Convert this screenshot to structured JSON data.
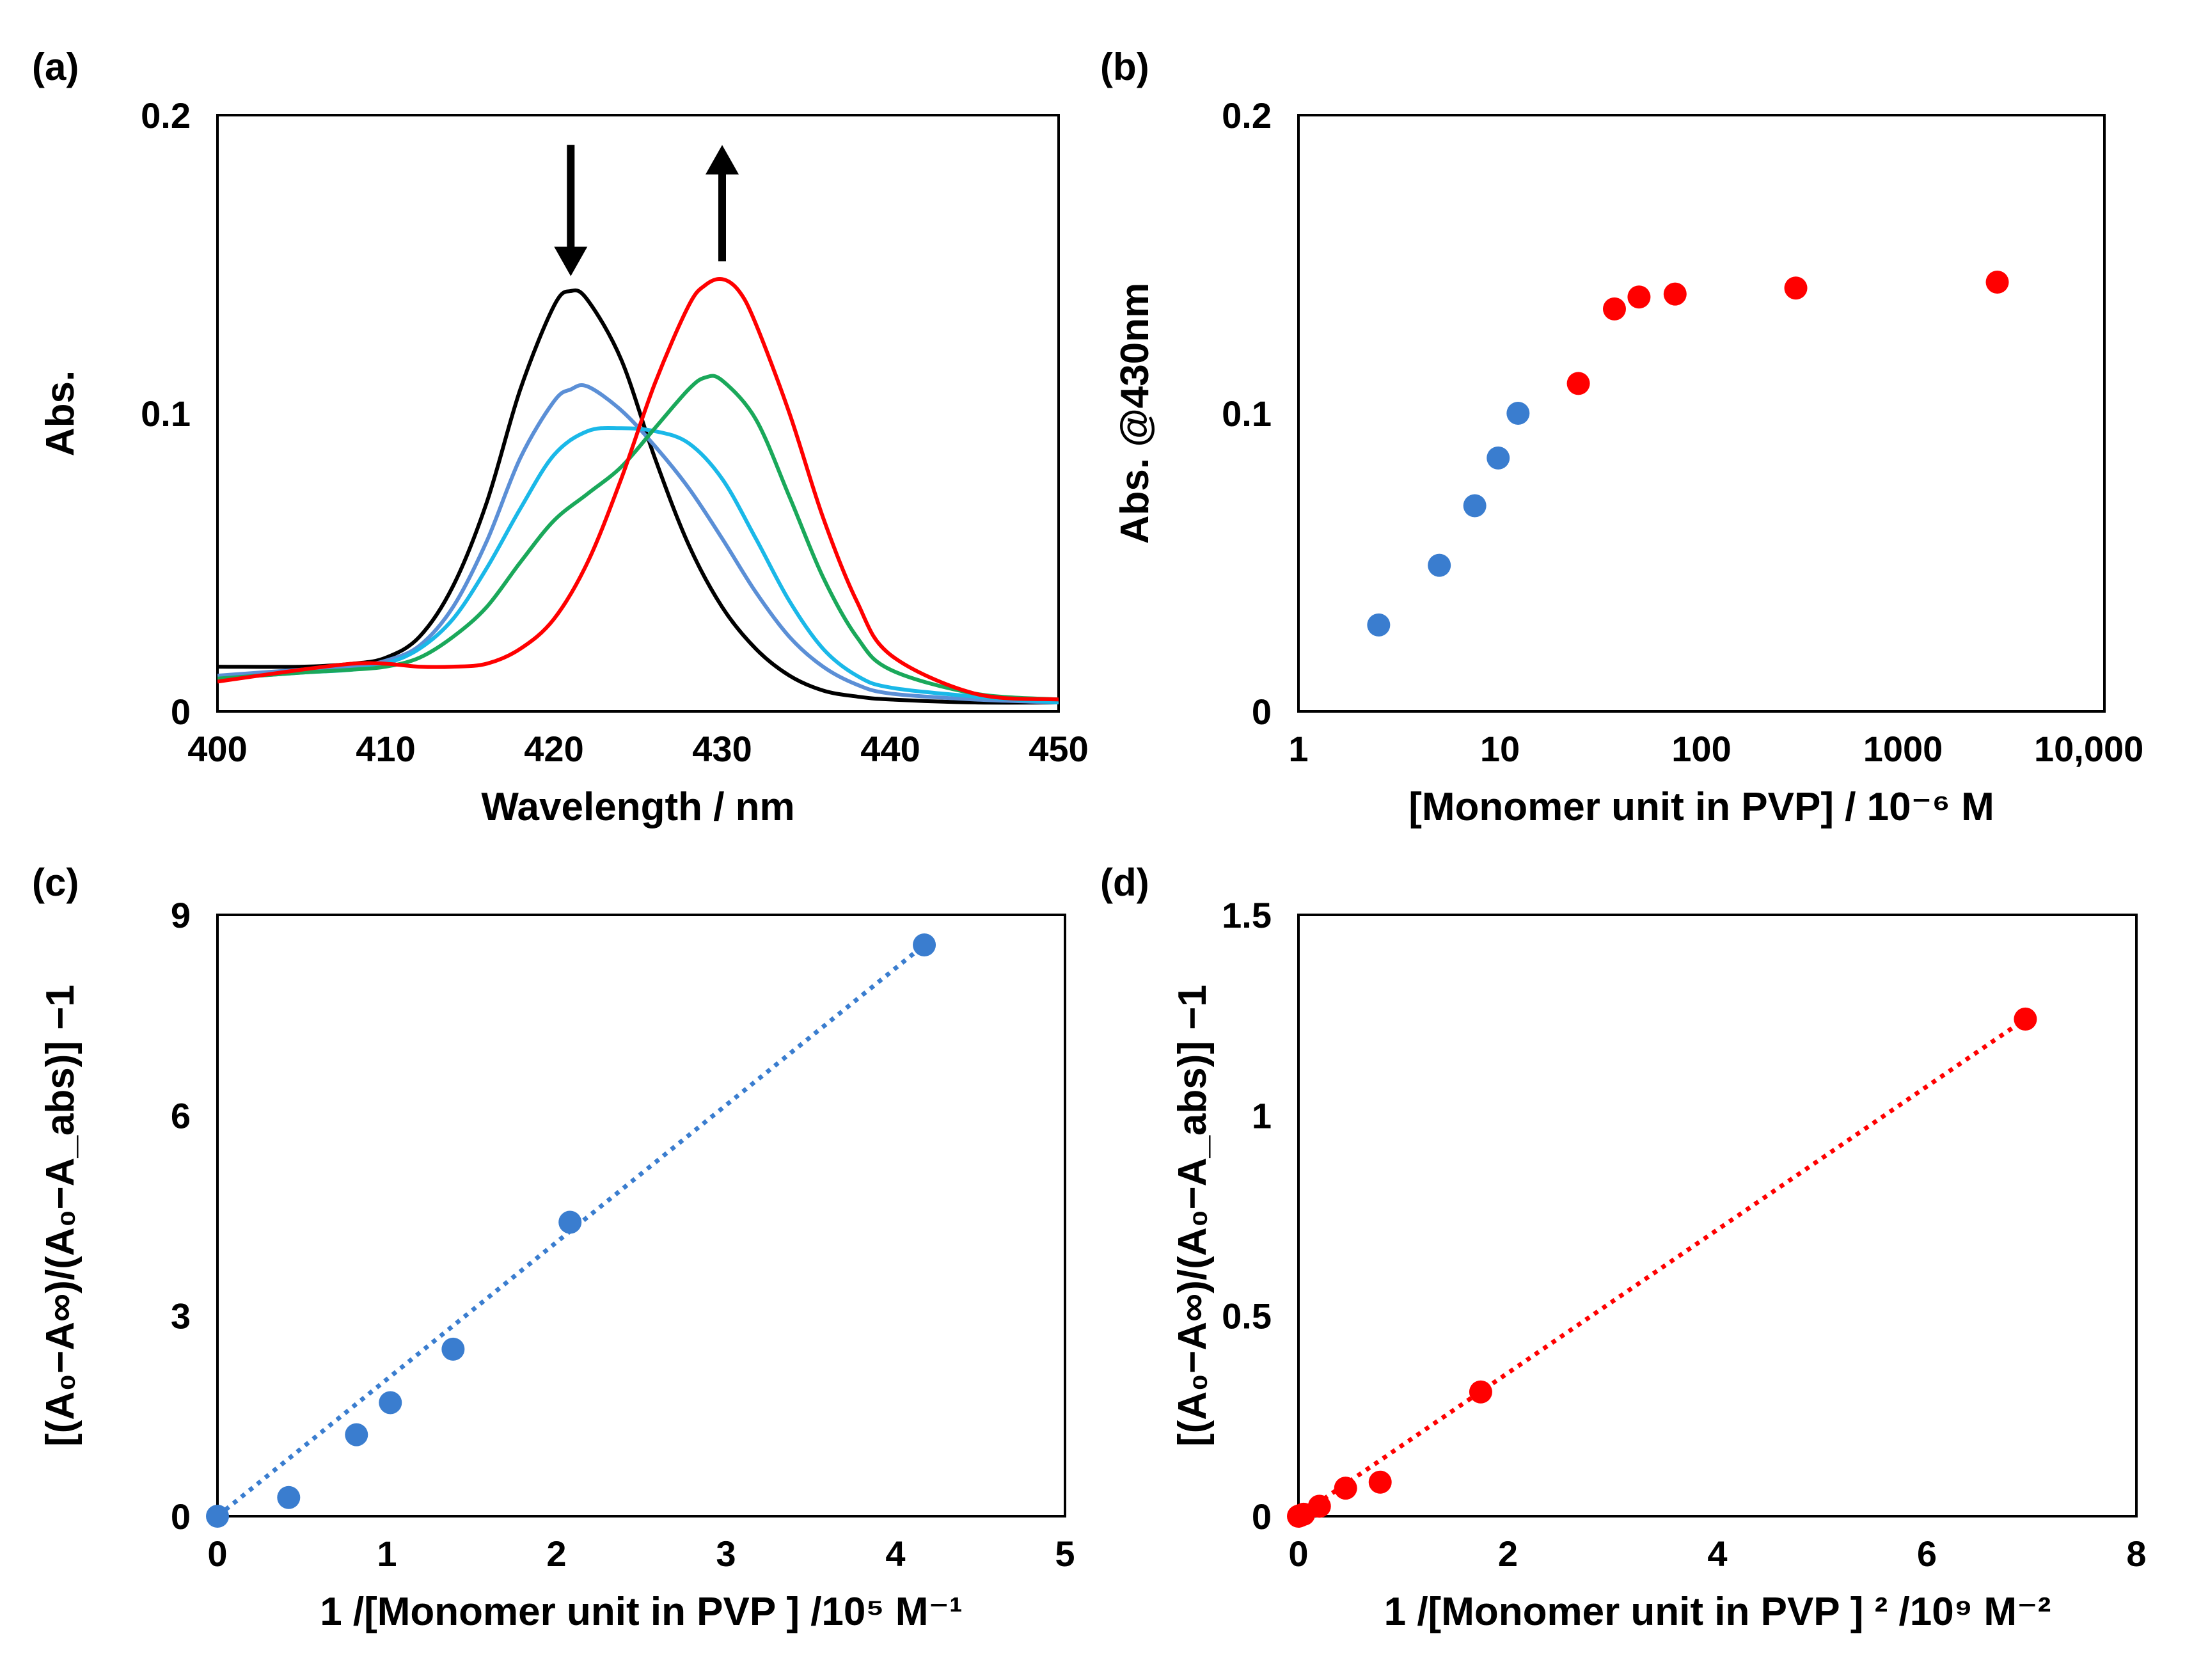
{
  "colors": {
    "black": "#000000",
    "blue_light": "#5b8fd6",
    "cyan": "#1ab8e8",
    "green": "#1aa85a",
    "red": "#ff0000",
    "blue_marker": "#3a7dcf",
    "red_marker": "#ff0000"
  },
  "chart_data": [
    {
      "id": "a",
      "type": "line",
      "panel_label": "(a)",
      "xlabel": "Wavelength / nm",
      "ylabel": "Abs.",
      "xlim": [
        400,
        450
      ],
      "ylim": [
        0,
        0.2
      ],
      "xticks": [
        "400",
        "410",
        "420",
        "430",
        "440",
        "450"
      ],
      "yticks": [
        "0",
        "0.1",
        "0.2"
      ],
      "arrows": [
        {
          "direction": "down",
          "x": 421,
          "y_from": 0.19,
          "y_to": 0.146
        },
        {
          "direction": "up",
          "x": 430,
          "y_from": 0.151,
          "y_to": 0.19
        }
      ],
      "series": [
        {
          "name": "black",
          "color": "#000000",
          "x": [
            400,
            405,
            408,
            410,
            412,
            414,
            416,
            418,
            420,
            421,
            422,
            424,
            426,
            428,
            430,
            432,
            434,
            436,
            438,
            440,
            445,
            450
          ],
          "y": [
            0.015,
            0.015,
            0.016,
            0.018,
            0.025,
            0.042,
            0.07,
            0.108,
            0.136,
            0.141,
            0.138,
            0.118,
            0.085,
            0.056,
            0.035,
            0.021,
            0.012,
            0.007,
            0.005,
            0.004,
            0.003,
            0.003
          ]
        },
        {
          "name": "blue",
          "color": "#5b8fd6",
          "x": [
            400,
            405,
            408,
            410,
            412,
            414,
            416,
            418,
            420,
            421,
            422,
            424,
            426,
            428,
            430,
            432,
            434,
            436,
            438,
            440,
            445,
            450
          ],
          "y": [
            0.012,
            0.014,
            0.015,
            0.017,
            0.022,
            0.035,
            0.057,
            0.085,
            0.104,
            0.108,
            0.109,
            0.101,
            0.089,
            0.075,
            0.058,
            0.04,
            0.025,
            0.015,
            0.009,
            0.006,
            0.004,
            0.003
          ]
        },
        {
          "name": "cyan",
          "color": "#1ab8e8",
          "x": [
            400,
            405,
            408,
            410,
            412,
            414,
            416,
            418,
            420,
            422,
            424,
            426,
            428,
            430,
            432,
            434,
            436,
            438,
            440,
            445,
            450
          ],
          "y": [
            0.011,
            0.013,
            0.014,
            0.016,
            0.021,
            0.031,
            0.048,
            0.068,
            0.086,
            0.094,
            0.095,
            0.094,
            0.09,
            0.078,
            0.058,
            0.037,
            0.021,
            0.012,
            0.008,
            0.005,
            0.003
          ]
        },
        {
          "name": "green",
          "color": "#1aa85a",
          "x": [
            400,
            405,
            408,
            410,
            412,
            414,
            416,
            418,
            420,
            422,
            424,
            426,
            428,
            429,
            430,
            432,
            434,
            436,
            438,
            440,
            445,
            450
          ],
          "y": [
            0.011,
            0.013,
            0.014,
            0.015,
            0.018,
            0.025,
            0.035,
            0.05,
            0.064,
            0.073,
            0.082,
            0.095,
            0.108,
            0.112,
            0.111,
            0.098,
            0.072,
            0.045,
            0.025,
            0.014,
            0.006,
            0.004
          ]
        },
        {
          "name": "red",
          "color": "#ff0000",
          "x": [
            400,
            405,
            408,
            410,
            412,
            414,
            416,
            418,
            420,
            422,
            424,
            426,
            428,
            429,
            430,
            431,
            432,
            434,
            436,
            438,
            440,
            445,
            450
          ],
          "y": [
            0.01,
            0.014,
            0.016,
            0.016,
            0.015,
            0.015,
            0.016,
            0.021,
            0.031,
            0.05,
            0.078,
            0.11,
            0.136,
            0.143,
            0.145,
            0.141,
            0.13,
            0.1,
            0.065,
            0.037,
            0.019,
            0.006,
            0.004
          ]
        }
      ]
    },
    {
      "id": "b",
      "type": "scatter",
      "panel_label": "(b)",
      "xscale": "log",
      "xlabel": "[Monomer unit in PVP] / 10⁻⁶ M",
      "ylabel": "Abs. @430nm",
      "xlim": [
        1,
        10000
      ],
      "ylim": [
        0,
        0.2
      ],
      "xticks": [
        "1",
        "10",
        "100",
        "1000",
        "10,000"
      ],
      "yticks": [
        "0",
        "0.1",
        "0.2"
      ],
      "series": [
        {
          "name": "blue",
          "color": "#3a7dcf",
          "x": [
            2.5,
            5,
            7.5,
            9.8,
            12.3
          ],
          "y": [
            0.029,
            0.049,
            0.069,
            0.085,
            0.1
          ]
        },
        {
          "name": "red",
          "color": "#ff0000",
          "x": [
            24.5,
            37,
            49,
            74,
            294,
            2940
          ],
          "y": [
            0.11,
            0.135,
            0.139,
            0.14,
            0.142,
            0.144
          ]
        }
      ]
    },
    {
      "id": "c",
      "type": "scatter",
      "panel_label": "(c)",
      "xlabel": "1 /[Monomer unit in PVP ]  /10⁵ M⁻¹",
      "ylabel": "[(A₀−A∞)/(A₀−A_abs)] −1",
      "xlim": [
        0,
        5
      ],
      "ylim": [
        0,
        9
      ],
      "xticks": [
        "0",
        "1",
        "2",
        "3",
        "4",
        "5"
      ],
      "yticks": [
        "0",
        "3",
        "6",
        "9"
      ],
      "fit_line": {
        "color": "#3a7dcf",
        "x": [
          0,
          4.17
        ],
        "y": [
          0,
          8.55
        ]
      },
      "series": [
        {
          "name": "blue",
          "color": "#3a7dcf",
          "x": [
            0,
            0.42,
            0.82,
            1.02,
            1.39,
            2.08,
            4.17
          ],
          "y": [
            0,
            0.28,
            1.22,
            1.7,
            2.5,
            4.4,
            8.55
          ]
        }
      ]
    },
    {
      "id": "d",
      "type": "scatter",
      "panel_label": "(d)",
      "xlabel": "1 /[Monomer unit in PVP ] ² /10⁹ M⁻²",
      "ylabel": "[(A₀−A∞)/(A₀−A_abs)] −1",
      "xlim": [
        0,
        8
      ],
      "ylim": [
        0,
        1.5
      ],
      "xticks": [
        "0",
        "2",
        "4",
        "6",
        "8"
      ],
      "yticks": [
        "0",
        "0.5",
        "1",
        "1.5"
      ],
      "fit_line": {
        "color": "#ff0000",
        "x": [
          0,
          6.94
        ],
        "y": [
          0,
          1.24
        ]
      },
      "series": [
        {
          "name": "red",
          "color": "#ff0000",
          "x": [
            0,
            0.02,
            0.05,
            0.2,
            0.45,
            0.78,
            1.74,
            6.94
          ],
          "y": [
            0,
            0.002,
            0.005,
            0.025,
            0.07,
            0.085,
            0.31,
            1.24
          ]
        }
      ]
    }
  ]
}
